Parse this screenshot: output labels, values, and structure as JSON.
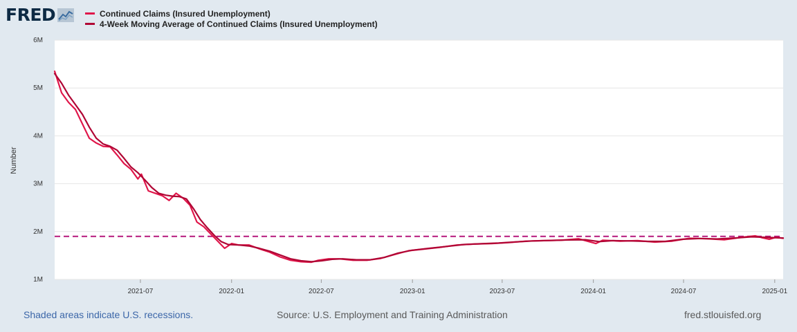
{
  "logo": {
    "text": "FRED",
    "icon": "chart-line-icon"
  },
  "legend": [
    {
      "label": "Continued Claims (Insured Unemployment)",
      "color": "#e0164a"
    },
    {
      "label": "4-Week Moving Average of Continued Claims (Insured Unemployment)",
      "color": "#b00534"
    }
  ],
  "footer": {
    "recession_note": "Shaded areas indicate U.S. recessions.",
    "source": "Source: U.S. Employment and Training Administration",
    "site": "fred.stlouisfed.org"
  },
  "chart_data": {
    "type": "line",
    "ylabel": "Number",
    "ylim": [
      1000000,
      6000000
    ],
    "xlim": [
      "2021-01-09",
      "2025-01-18"
    ],
    "yticks": [
      {
        "value": 1000000,
        "label": "1M"
      },
      {
        "value": 2000000,
        "label": "2M"
      },
      {
        "value": 3000000,
        "label": "3M"
      },
      {
        "value": 4000000,
        "label": "4M"
      },
      {
        "value": 5000000,
        "label": "5M"
      },
      {
        "value": 6000000,
        "label": "6M"
      }
    ],
    "xticks": [
      {
        "value": "2021-07-01",
        "label": "2021-07"
      },
      {
        "value": "2022-01-01",
        "label": "2022-01"
      },
      {
        "value": "2022-07-01",
        "label": "2022-07"
      },
      {
        "value": "2023-01-01",
        "label": "2023-01"
      },
      {
        "value": "2023-07-01",
        "label": "2023-07"
      },
      {
        "value": "2024-01-01",
        "label": "2024-01"
      },
      {
        "value": "2024-07-01",
        "label": "2024-07"
      },
      {
        "value": "2025-01-01",
        "label": "2025-01"
      }
    ],
    "reference_line": {
      "value": 1900000,
      "color": "#b5177b",
      "style": "dashed"
    },
    "series": [
      {
        "name": "Continued Claims (Insured Unemployment)",
        "color": "#e0164a",
        "points": [
          [
            "2021-01-09",
            5350000
          ],
          [
            "2021-01-23",
            4900000
          ],
          [
            "2021-02-06",
            4700000
          ],
          [
            "2021-02-20",
            4550000
          ],
          [
            "2021-03-06",
            4250000
          ],
          [
            "2021-03-20",
            3950000
          ],
          [
            "2021-04-03",
            3850000
          ],
          [
            "2021-04-17",
            3780000
          ],
          [
            "2021-05-01",
            3770000
          ],
          [
            "2021-05-15",
            3600000
          ],
          [
            "2021-05-29",
            3420000
          ],
          [
            "2021-06-12",
            3300000
          ],
          [
            "2021-06-26",
            3100000
          ],
          [
            "2021-07-03",
            3200000
          ],
          [
            "2021-07-17",
            2850000
          ],
          [
            "2021-07-31",
            2800000
          ],
          [
            "2021-08-14",
            2750000
          ],
          [
            "2021-08-28",
            2650000
          ],
          [
            "2021-09-11",
            2800000
          ],
          [
            "2021-09-25",
            2700000
          ],
          [
            "2021-10-09",
            2550000
          ],
          [
            "2021-10-23",
            2200000
          ],
          [
            "2021-11-06",
            2100000
          ],
          [
            "2021-11-20",
            1950000
          ],
          [
            "2021-12-04",
            1800000
          ],
          [
            "2021-12-18",
            1650000
          ],
          [
            "2022-01-01",
            1750000
          ],
          [
            "2022-01-15",
            1720000
          ],
          [
            "2022-02-05",
            1720000
          ],
          [
            "2022-02-26",
            1640000
          ],
          [
            "2022-03-19",
            1570000
          ],
          [
            "2022-04-09",
            1470000
          ],
          [
            "2022-04-30",
            1400000
          ],
          [
            "2022-05-21",
            1370000
          ],
          [
            "2022-06-11",
            1360000
          ],
          [
            "2022-06-25",
            1400000
          ],
          [
            "2022-07-16",
            1430000
          ],
          [
            "2022-08-06",
            1430000
          ],
          [
            "2022-09-03",
            1400000
          ],
          [
            "2022-10-01",
            1400000
          ],
          [
            "2022-10-29",
            1440000
          ],
          [
            "2022-11-26",
            1520000
          ],
          [
            "2022-12-24",
            1600000
          ],
          [
            "2023-01-21",
            1630000
          ],
          [
            "2023-02-25",
            1670000
          ],
          [
            "2023-04-01",
            1720000
          ],
          [
            "2023-05-06",
            1740000
          ],
          [
            "2023-06-10",
            1750000
          ],
          [
            "2023-07-15",
            1770000
          ],
          [
            "2023-08-19",
            1800000
          ],
          [
            "2023-09-23",
            1810000
          ],
          [
            "2023-10-28",
            1820000
          ],
          [
            "2023-12-02",
            1850000
          ],
          [
            "2024-01-06",
            1750000
          ],
          [
            "2024-01-20",
            1820000
          ],
          [
            "2024-02-24",
            1800000
          ],
          [
            "2024-03-30",
            1810000
          ],
          [
            "2024-05-04",
            1780000
          ],
          [
            "2024-06-08",
            1800000
          ],
          [
            "2024-07-13",
            1860000
          ],
          [
            "2024-08-17",
            1850000
          ],
          [
            "2024-09-21",
            1830000
          ],
          [
            "2024-10-26",
            1880000
          ],
          [
            "2024-11-23",
            1910000
          ],
          [
            "2024-12-07",
            1870000
          ],
          [
            "2024-12-21",
            1840000
          ],
          [
            "2025-01-04",
            1880000
          ],
          [
            "2025-01-18",
            1860000
          ]
        ]
      },
      {
        "name": "4-Week Moving Average of Continued Claims (Insured Unemployment)",
        "color": "#b00534",
        "points": [
          [
            "2021-01-09",
            5300000
          ],
          [
            "2021-01-23",
            5100000
          ],
          [
            "2021-02-06",
            4850000
          ],
          [
            "2021-02-20",
            4650000
          ],
          [
            "2021-03-06",
            4450000
          ],
          [
            "2021-03-20",
            4180000
          ],
          [
            "2021-04-03",
            3950000
          ],
          [
            "2021-04-17",
            3830000
          ],
          [
            "2021-05-01",
            3780000
          ],
          [
            "2021-05-15",
            3700000
          ],
          [
            "2021-05-29",
            3530000
          ],
          [
            "2021-06-12",
            3350000
          ],
          [
            "2021-06-26",
            3230000
          ],
          [
            "2021-07-10",
            3080000
          ],
          [
            "2021-07-24",
            2920000
          ],
          [
            "2021-08-07",
            2800000
          ],
          [
            "2021-08-21",
            2760000
          ],
          [
            "2021-09-04",
            2740000
          ],
          [
            "2021-09-18",
            2730000
          ],
          [
            "2021-10-02",
            2680000
          ],
          [
            "2021-10-16",
            2480000
          ],
          [
            "2021-10-30",
            2250000
          ],
          [
            "2021-11-13",
            2080000
          ],
          [
            "2021-11-27",
            1920000
          ],
          [
            "2021-12-11",
            1790000
          ],
          [
            "2021-12-25",
            1730000
          ],
          [
            "2022-01-15",
            1720000
          ],
          [
            "2022-02-05",
            1700000
          ],
          [
            "2022-02-26",
            1650000
          ],
          [
            "2022-03-19",
            1590000
          ],
          [
            "2022-04-09",
            1510000
          ],
          [
            "2022-04-30",
            1430000
          ],
          [
            "2022-05-21",
            1390000
          ],
          [
            "2022-06-11",
            1370000
          ],
          [
            "2022-07-02",
            1390000
          ],
          [
            "2022-07-23",
            1420000
          ],
          [
            "2022-08-13",
            1430000
          ],
          [
            "2022-09-10",
            1410000
          ],
          [
            "2022-10-08",
            1410000
          ],
          [
            "2022-11-05",
            1460000
          ],
          [
            "2022-12-03",
            1550000
          ],
          [
            "2022-12-31",
            1610000
          ],
          [
            "2023-02-04",
            1650000
          ],
          [
            "2023-03-11",
            1690000
          ],
          [
            "2023-04-15",
            1730000
          ],
          [
            "2023-05-20",
            1745000
          ],
          [
            "2023-06-24",
            1760000
          ],
          [
            "2023-07-29",
            1785000
          ],
          [
            "2023-09-02",
            1805000
          ],
          [
            "2023-10-07",
            1815000
          ],
          [
            "2023-11-11",
            1825000
          ],
          [
            "2023-12-16",
            1830000
          ],
          [
            "2024-01-13",
            1790000
          ],
          [
            "2024-02-10",
            1810000
          ],
          [
            "2024-03-16",
            1805000
          ],
          [
            "2024-04-20",
            1795000
          ],
          [
            "2024-05-25",
            1795000
          ],
          [
            "2024-06-29",
            1840000
          ],
          [
            "2024-08-03",
            1855000
          ],
          [
            "2024-09-07",
            1845000
          ],
          [
            "2024-10-12",
            1865000
          ],
          [
            "2024-11-16",
            1890000
          ],
          [
            "2024-12-14",
            1880000
          ],
          [
            "2025-01-18",
            1865000
          ]
        ]
      }
    ]
  }
}
